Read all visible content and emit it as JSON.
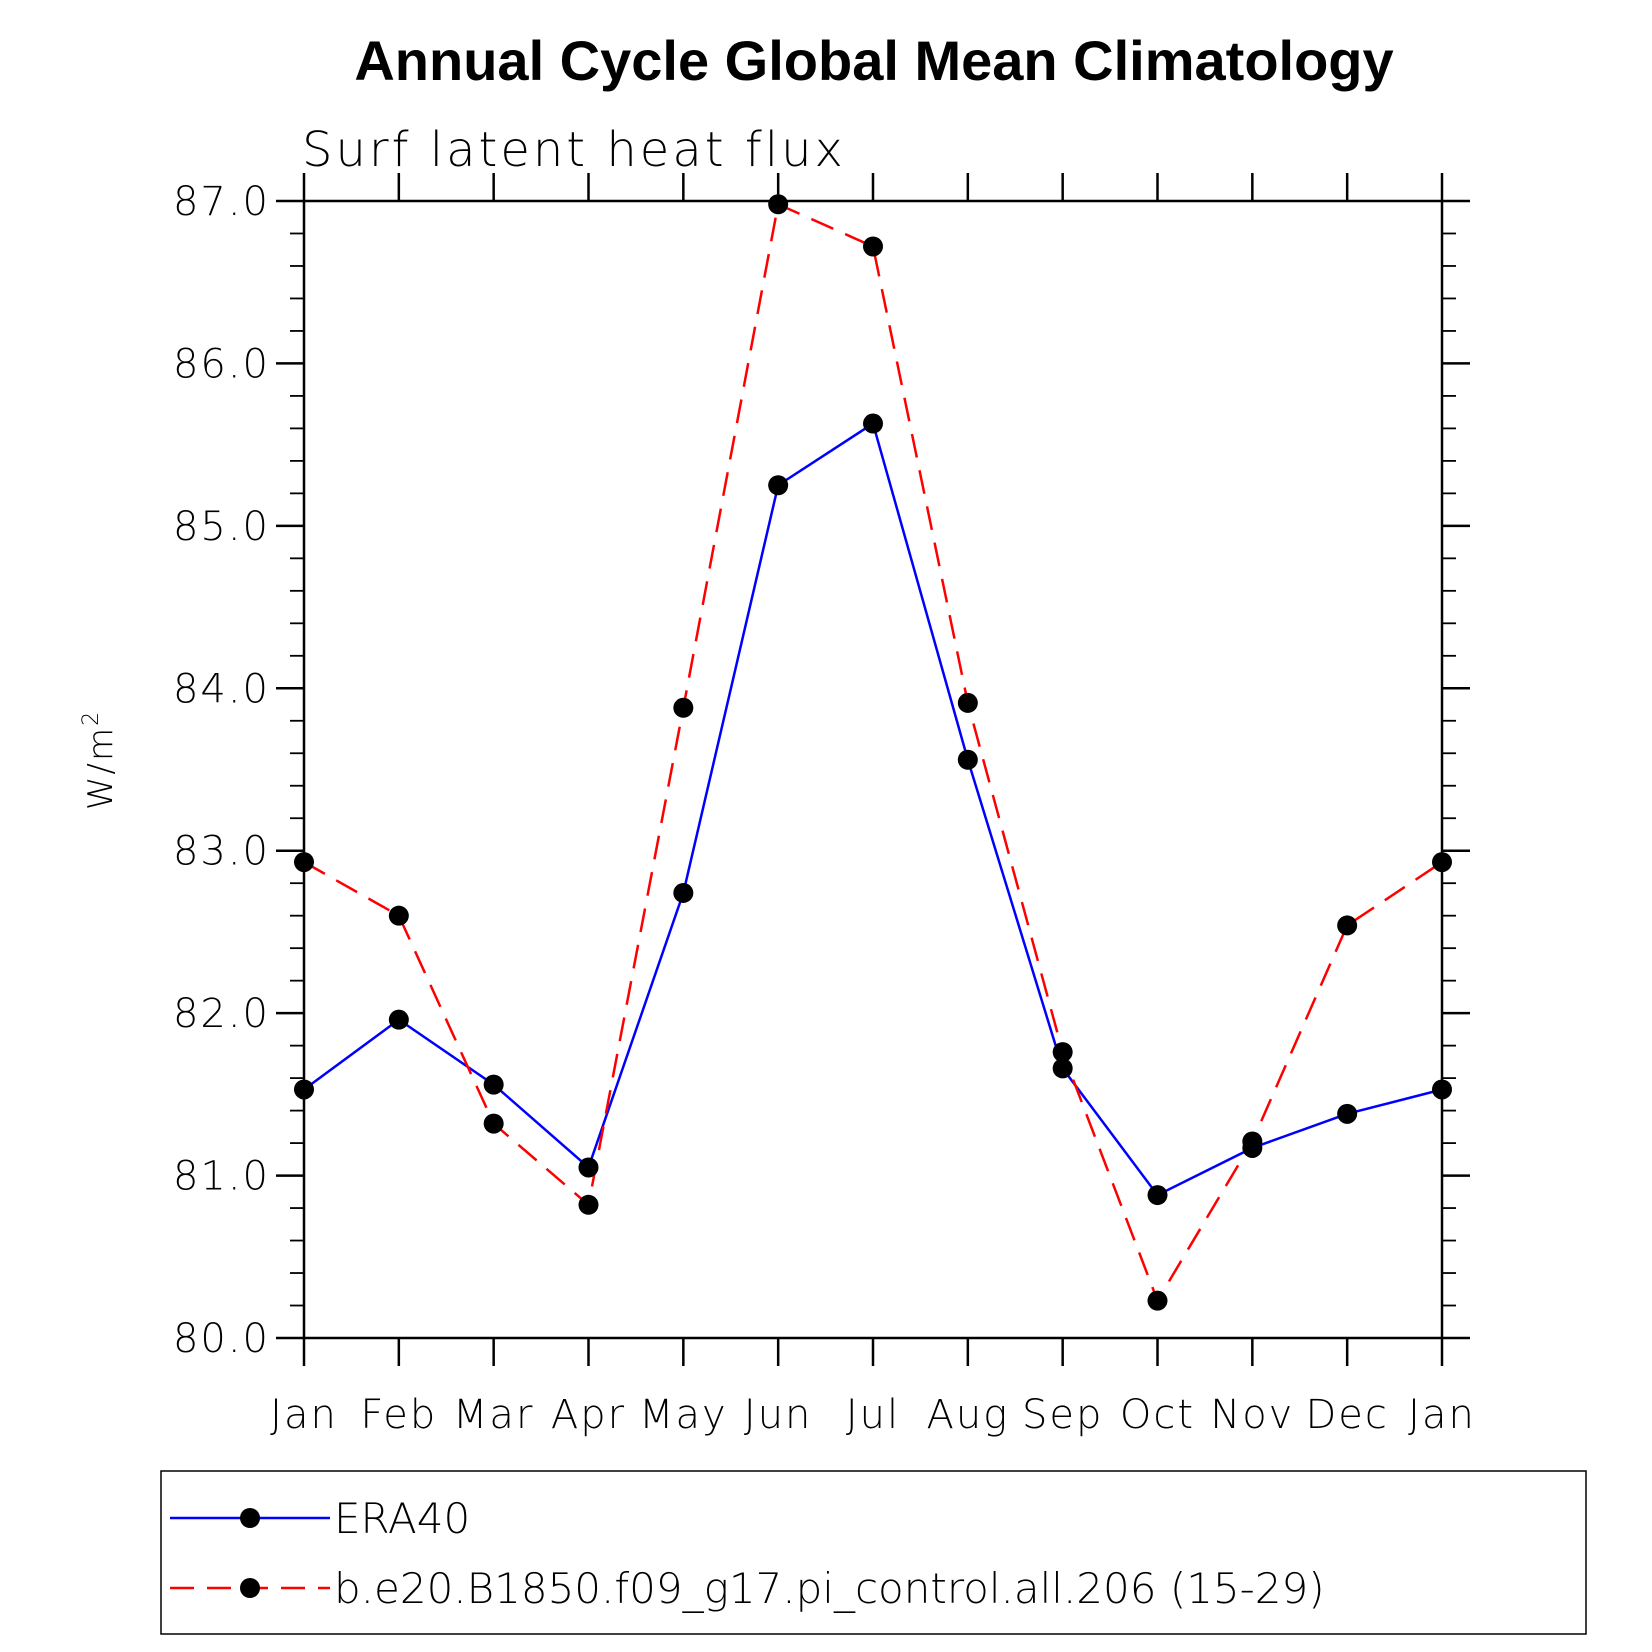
{
  "chart_data": {
    "type": "line",
    "title": "Annual Cycle Global Mean Climatology",
    "subtitle": "Surf latent heat flux",
    "ylabel_base": "W/m",
    "ylabel_sup": "2",
    "categories": [
      "Jan",
      "Feb",
      "Mar",
      "Apr",
      "May",
      "Jun",
      "Jul",
      "Aug",
      "Sep",
      "Oct",
      "Nov",
      "Dec",
      "Jan"
    ],
    "ylim": [
      80.0,
      87.0
    ],
    "yticks": [
      "80.0",
      "81.0",
      "82.0",
      "83.0",
      "84.0",
      "85.0",
      "86.0",
      "87.0"
    ],
    "series": [
      {
        "name": "ERA40",
        "color": "#0000ff",
        "dash": "solid",
        "values": [
          81.53,
          81.96,
          81.56,
          81.05,
          82.74,
          85.25,
          85.63,
          83.56,
          81.66,
          80.88,
          81.17,
          81.38,
          81.53
        ]
      },
      {
        "name": "b.e20.B1850.f09_g17.pi_control.all.206 (15-29)",
        "color": "#ff0000",
        "dash": "dashed",
        "values": [
          82.93,
          82.6,
          81.32,
          80.82,
          83.88,
          86.98,
          86.72,
          83.91,
          81.76,
          80.23,
          81.21,
          82.54,
          82.93
        ]
      }
    ],
    "marker_color": "#000000",
    "legend_position": "bottom",
    "grid": false
  }
}
